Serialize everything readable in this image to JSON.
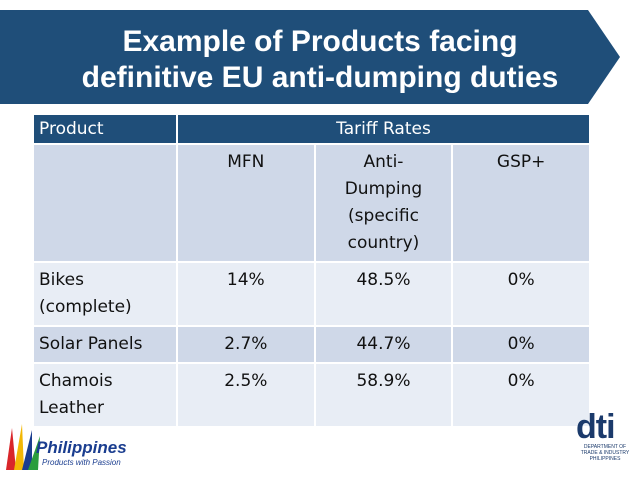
{
  "slide": {
    "title_line1": "Example of Products facing",
    "title_line2": "definitive EU anti-dumping duties",
    "banner_color": "#1f4e79"
  },
  "table": {
    "header": {
      "product": "Product",
      "tariff_rates": "Tariff Rates"
    },
    "subheader": {
      "mfn": "MFN",
      "anti_dumping": "Anti-Dumping (specific country)",
      "gsp": "GSP+"
    },
    "rows": [
      {
        "product": "Bikes (complete)",
        "mfn": "14%",
        "anti_dumping": "48.5%",
        "gsp": "0%"
      },
      {
        "product": "Solar Panels",
        "mfn": "2.7%",
        "anti_dumping": "44.7%",
        "gsp": "0%"
      },
      {
        "product": "Chamois Leather",
        "mfn": "2.5%",
        "anti_dumping": "58.9%",
        "gsp": "0%"
      }
    ]
  },
  "logos": {
    "philippines_word": "Philippines",
    "philippines_tagline": "Products with Passion",
    "dti_mark": "dti",
    "dti_text": "DEPARTMENT OF TRADE & INDUSTRY PHILIPPINES"
  }
}
